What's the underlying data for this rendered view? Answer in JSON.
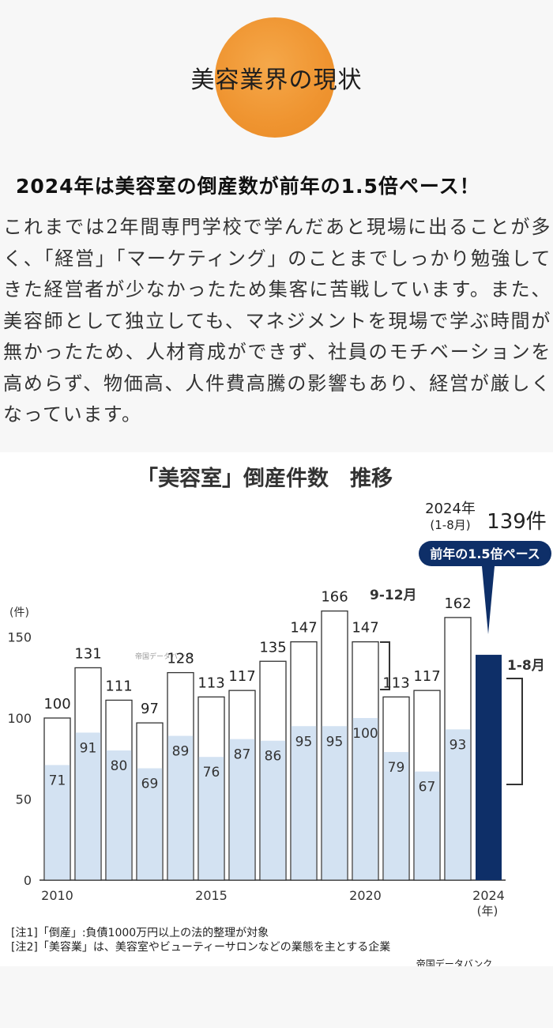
{
  "hero": {
    "title": "美容業界の現状"
  },
  "headline": "2024年は美容室の倒産数が前年の1.5倍ペース！",
  "body": "これまでは2年間専門学校で学んだあと現場に出ることが多く、「経営」「マーケティング」のことまでしっかり勉強してきた経営者が少なかったため集客に苦戦しています。また、美容師として独立しても、マネジメントを現場で学ぶ時間が無かったため、人材育成ができず、社員のモチベーションを高めらず、物価高、人件費高騰の影響もあり、経営が厳しくなっています。",
  "colors": {
    "accent": "#ef9430",
    "bar_dark": "#0e2f68",
    "bar_light": "#d3e2f2"
  },
  "chart_data": {
    "type": "bar",
    "title": "「美容室」倒産件数　推移",
    "ylabel": "(件)",
    "xlabel": "(年)",
    "ylim": [
      0,
      150
    ],
    "yticks": [
      0,
      50,
      100,
      150
    ],
    "x_tick_labels": [
      "2010",
      "2015",
      "2020",
      "2024"
    ],
    "categories": [
      "2010",
      "2011",
      "2012",
      "2013",
      "2014",
      "2015",
      "2016",
      "2017",
      "2018",
      "2019",
      "2020",
      "2021",
      "2022",
      "2023",
      "2024"
    ],
    "totals": [
      100,
      131,
      111,
      97,
      128,
      113,
      117,
      135,
      147,
      166,
      147,
      113,
      117,
      162,
      139
    ],
    "series": [
      {
        "values": [
          71,
          91,
          80,
          69,
          89,
          76,
          87,
          86,
          95,
          95,
          100,
          79,
          67,
          93,
          null
        ]
      }
    ],
    "annotations": {
      "period_2024": "2024年",
      "months_2024": "(1-8月)",
      "count_2024": "139件",
      "badge": "前年の1.5倍ペース",
      "sept_dec": "9-12月",
      "jan_aug": "1-8月"
    },
    "notes": [
      "[注1]「倒産」:負債1000万円以上の法的整理が対象",
      "[注2]「美容業」は、美容室やビューティーサロンなどの業態を主とする企業"
    ],
    "source": "帝国データバンク",
    "watermark": "帝国データバンク"
  }
}
